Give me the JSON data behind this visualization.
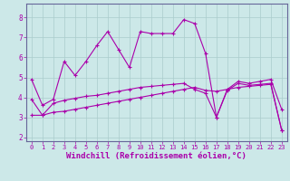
{
  "bg_color": "#cce8e8",
  "line_color": "#aa00aa",
  "grid_color": "#aacccc",
  "xlabel": "Windchill (Refroidissement éolien,°C)",
  "xlabel_fontsize": 6.5,
  "xtick_fontsize": 5.0,
  "ytick_fontsize": 5.5,
  "xlim": [
    -0.5,
    23.5
  ],
  "ylim": [
    1.8,
    8.7
  ],
  "yticks": [
    2,
    3,
    4,
    5,
    6,
    7,
    8
  ],
  "xticks": [
    0,
    1,
    2,
    3,
    4,
    5,
    6,
    7,
    8,
    9,
    10,
    11,
    12,
    13,
    14,
    15,
    16,
    17,
    18,
    19,
    20,
    21,
    22,
    23
  ],
  "series1_x": [
    0,
    1,
    2,
    3,
    4,
    5,
    6,
    7,
    8,
    9,
    10,
    11,
    12,
    13,
    14,
    15,
    16,
    17,
    18,
    19,
    20,
    21,
    22,
    23
  ],
  "series1_y": [
    4.9,
    3.6,
    3.9,
    5.8,
    5.1,
    5.8,
    6.6,
    7.3,
    6.4,
    5.5,
    7.3,
    7.2,
    7.2,
    7.2,
    7.9,
    7.7,
    6.2,
    3.0,
    4.4,
    4.8,
    4.7,
    4.8,
    4.9,
    3.4
  ],
  "series2_x": [
    0,
    1,
    2,
    3,
    4,
    5,
    6,
    7,
    8,
    9,
    10,
    11,
    12,
    13,
    14,
    15,
    16,
    17,
    18,
    19,
    20,
    21,
    22,
    23
  ],
  "series2_y": [
    3.1,
    3.1,
    3.25,
    3.3,
    3.4,
    3.5,
    3.6,
    3.7,
    3.8,
    3.9,
    4.0,
    4.1,
    4.2,
    4.3,
    4.4,
    4.5,
    4.35,
    4.3,
    4.4,
    4.5,
    4.55,
    4.6,
    4.65,
    2.35
  ],
  "series3_x": [
    0,
    1,
    2,
    3,
    4,
    5,
    6,
    7,
    8,
    9,
    10,
    11,
    12,
    13,
    14,
    15,
    16,
    17,
    18,
    19,
    20,
    21,
    22,
    23
  ],
  "series3_y": [
    3.9,
    3.1,
    3.7,
    3.85,
    3.95,
    4.05,
    4.1,
    4.2,
    4.3,
    4.4,
    4.5,
    4.55,
    4.6,
    4.65,
    4.7,
    4.4,
    4.2,
    3.0,
    4.35,
    4.7,
    4.6,
    4.65,
    4.7,
    2.35
  ]
}
